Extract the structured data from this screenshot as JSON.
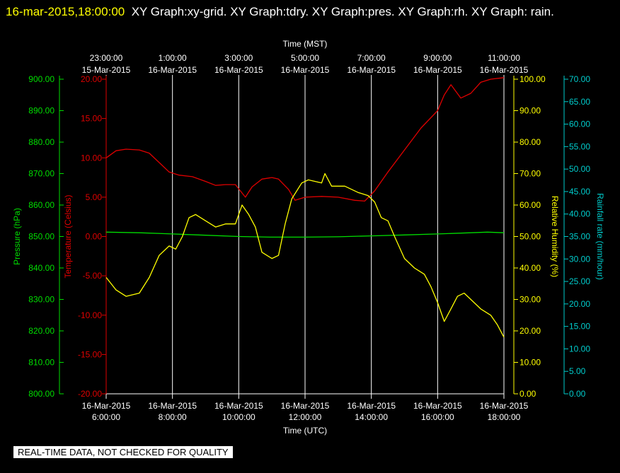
{
  "header": {
    "timestamp": "16-mar-2015,18:00:00",
    "graphs": "XY Graph:xy-grid.  XY Graph:tdry.  XY Graph:pres.  XY Graph:rh.  XY Graph: rain."
  },
  "footer": {
    "notice": "REAL-TIME DATA, NOT CHECKED FOR QUALITY"
  },
  "colors": {
    "background": "#000000",
    "grid": "#ffffff",
    "pressure": "#00dd00",
    "temperature": "#e00000",
    "humidity": "#ffff00",
    "rain": "#00cccc"
  },
  "chart_data": {
    "type": "line",
    "x_top": {
      "label": "Time (MST)",
      "ticks": [
        {
          "time": "23:00:00",
          "date": "15-Mar-2015"
        },
        {
          "time": "1:00:00",
          "date": "16-Mar-2015"
        },
        {
          "time": "3:00:00",
          "date": "16-Mar-2015"
        },
        {
          "time": "5:00:00",
          "date": "16-Mar-2015"
        },
        {
          "time": "7:00:00",
          "date": "16-Mar-2015"
        },
        {
          "time": "9:00:00",
          "date": "16-Mar-2015"
        },
        {
          "time": "11:00:00",
          "date": "16-Mar-2015"
        }
      ]
    },
    "x_bottom": {
      "label": "Time (UTC)",
      "range": [
        6,
        18
      ],
      "ticks": [
        {
          "hour": 6,
          "date": "16-Mar-2015",
          "time": "6:00:00"
        },
        {
          "hour": 8,
          "date": "16-Mar-2015",
          "time": "8:00:00"
        },
        {
          "hour": 10,
          "date": "16-Mar-2015",
          "time": "10:00:00"
        },
        {
          "hour": 12,
          "date": "16-Mar-2015",
          "time": "12:00:00"
        },
        {
          "hour": 14,
          "date": "16-Mar-2015",
          "time": "14:00:00"
        },
        {
          "hour": 16,
          "date": "16-Mar-2015",
          "time": "16:00:00"
        },
        {
          "hour": 18,
          "date": "16-Mar-2015",
          "time": "18:00:00"
        }
      ]
    },
    "axes": {
      "pressure": {
        "label": "Pressure (hPa)",
        "min": 800,
        "max": 900,
        "ticks": [
          "900.00",
          "890.00",
          "880.00",
          "870.00",
          "860.00",
          "850.00",
          "840.00",
          "830.00",
          "820.00",
          "810.00",
          "800.00"
        ]
      },
      "temperature": {
        "label": "Temperature (Celsius)",
        "min": -20,
        "max": 20,
        "ticks": [
          "20.00",
          "15.00",
          "10.00",
          "5.00",
          "0.00",
          "-5.00",
          "-10.00",
          "-15.00",
          "-20.00"
        ]
      },
      "humidity": {
        "label": "Relative Humidity (%)",
        "min": 0,
        "max": 100,
        "ticks": [
          "100.00",
          "90.00",
          "80.00",
          "70.00",
          "60.00",
          "50.00",
          "40.00",
          "30.00",
          "20.00",
          "10.00",
          "0.00"
        ]
      },
      "rain": {
        "label": "Rainfall rate (mm/hour)",
        "min": 0,
        "max": 70,
        "ticks": [
          "70.00",
          "65.00",
          "60.00",
          "55.00",
          "50.00",
          "45.00",
          "40.00",
          "35.00",
          "30.00",
          "25.00",
          "20.00",
          "15.00",
          "10.00",
          "5.00",
          "0.00"
        ]
      }
    },
    "series": [
      {
        "name": "Pressure (hPa)",
        "axis": "pressure",
        "color": "#00dd00",
        "points": [
          [
            6.0,
            851.4
          ],
          [
            7.0,
            851.2
          ],
          [
            8.0,
            850.8
          ],
          [
            9.0,
            850.4
          ],
          [
            10.0,
            850.0
          ],
          [
            11.0,
            849.8
          ],
          [
            12.0,
            849.8
          ],
          [
            13.0,
            849.9
          ],
          [
            14.0,
            850.2
          ],
          [
            15.0,
            850.5
          ],
          [
            16.0,
            850.8
          ],
          [
            17.0,
            851.2
          ],
          [
            17.5,
            851.4
          ],
          [
            18.0,
            851.2
          ]
        ]
      },
      {
        "name": "Temperature (Celsius)",
        "axis": "temperature",
        "color": "#e00000",
        "points": [
          [
            6.0,
            10.0
          ],
          [
            6.3,
            10.9
          ],
          [
            6.6,
            11.1
          ],
          [
            7.0,
            11.0
          ],
          [
            7.3,
            10.6
          ],
          [
            7.6,
            9.4
          ],
          [
            7.9,
            8.2
          ],
          [
            8.2,
            7.8
          ],
          [
            8.6,
            7.6
          ],
          [
            9.0,
            7.0
          ],
          [
            9.3,
            6.5
          ],
          [
            9.6,
            6.6
          ],
          [
            9.9,
            6.6
          ],
          [
            10.2,
            5.0
          ],
          [
            10.4,
            6.3
          ],
          [
            10.7,
            7.3
          ],
          [
            11.0,
            7.5
          ],
          [
            11.2,
            7.3
          ],
          [
            11.5,
            6.0
          ],
          [
            11.7,
            4.6
          ],
          [
            12.0,
            5.0
          ],
          [
            12.5,
            5.1
          ],
          [
            13.0,
            5.0
          ],
          [
            13.5,
            4.6
          ],
          [
            13.8,
            4.5
          ],
          [
            14.1,
            5.8
          ],
          [
            14.5,
            8.2
          ],
          [
            15.0,
            11.0
          ],
          [
            15.5,
            13.8
          ],
          [
            16.0,
            16.0
          ],
          [
            16.2,
            18.0
          ],
          [
            16.4,
            19.3
          ],
          [
            16.7,
            17.6
          ],
          [
            17.0,
            18.2
          ],
          [
            17.3,
            19.6
          ],
          [
            17.6,
            20.0
          ],
          [
            18.0,
            20.2
          ]
        ]
      },
      {
        "name": "Relative Humidity (%)",
        "axis": "humidity",
        "color": "#ffff00",
        "points": [
          [
            6.0,
            37.0
          ],
          [
            6.3,
            33.0
          ],
          [
            6.6,
            31.0
          ],
          [
            7.0,
            32.0
          ],
          [
            7.3,
            37.0
          ],
          [
            7.6,
            44.0
          ],
          [
            7.9,
            47.0
          ],
          [
            8.1,
            46.0
          ],
          [
            8.3,
            50.0
          ],
          [
            8.5,
            56.0
          ],
          [
            8.7,
            57.0
          ],
          [
            9.0,
            55.0
          ],
          [
            9.3,
            53.0
          ],
          [
            9.6,
            54.0
          ],
          [
            9.9,
            54.0
          ],
          [
            10.1,
            60.0
          ],
          [
            10.3,
            57.0
          ],
          [
            10.5,
            53.0
          ],
          [
            10.7,
            45.0
          ],
          [
            11.0,
            43.0
          ],
          [
            11.2,
            44.0
          ],
          [
            11.4,
            54.0
          ],
          [
            11.6,
            62.0
          ],
          [
            11.9,
            67.0
          ],
          [
            12.1,
            68.0
          ],
          [
            12.5,
            67.0
          ],
          [
            12.6,
            70.0
          ],
          [
            12.8,
            66.0
          ],
          [
            13.2,
            66.0
          ],
          [
            13.6,
            64.0
          ],
          [
            13.9,
            63.0
          ],
          [
            14.1,
            61.0
          ],
          [
            14.3,
            56.0
          ],
          [
            14.5,
            55.0
          ],
          [
            14.7,
            50.0
          ],
          [
            15.0,
            43.0
          ],
          [
            15.3,
            40.0
          ],
          [
            15.6,
            38.0
          ],
          [
            15.8,
            34.0
          ],
          [
            16.0,
            29.0
          ],
          [
            16.2,
            23.0
          ],
          [
            16.4,
            27.0
          ],
          [
            16.6,
            31.0
          ],
          [
            16.8,
            32.0
          ],
          [
            17.0,
            30.0
          ],
          [
            17.3,
            27.0
          ],
          [
            17.6,
            25.0
          ],
          [
            17.8,
            22.0
          ],
          [
            18.0,
            18.0
          ]
        ]
      }
    ]
  }
}
